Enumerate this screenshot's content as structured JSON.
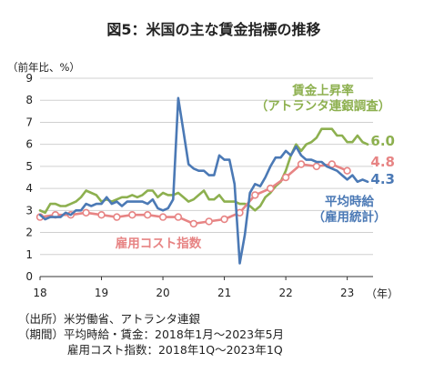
{
  "title": "図5：米国の主な賃金指標の推移",
  "notes": [
    "（出所）米労働省、アトランタ連銀",
    "（期間）平均時給・賃金：2018年1月～2023年5月",
    "　　　　 雇用コスト指数：2018年1Q～2023年1Q"
  ],
  "chart_data": {
    "type": "line",
    "title": "図5：米国の主な賃金指標の推移",
    "ylabel": "（前年比、%）",
    "xlabel": "（年）",
    "ylim": [
      0,
      9
    ],
    "yticks": [
      "0",
      "1",
      "2",
      "3",
      "4",
      "5",
      "6",
      "7",
      "8",
      "9"
    ],
    "xlim": [
      2018,
      2023.42
    ],
    "xticks": [
      {
        "x": 2018,
        "label": "18"
      },
      {
        "x": 2019,
        "label": "19"
      },
      {
        "x": 2020,
        "label": "20"
      },
      {
        "x": 2021,
        "label": "21"
      },
      {
        "x": 2022,
        "label": "22"
      },
      {
        "x": 2023,
        "label": "23"
      }
    ],
    "grid": true,
    "series": [
      {
        "name": "賃金上昇率\n（アトランタ連銀調査）",
        "color": "#8db04f",
        "end_label": "6.0",
        "frequency": "monthly",
        "start": 2018,
        "values": [
          3.0,
          2.9,
          3.3,
          3.3,
          3.2,
          3.2,
          3.3,
          3.4,
          3.6,
          3.9,
          3.8,
          3.7,
          3.4,
          3.5,
          3.4,
          3.5,
          3.6,
          3.6,
          3.7,
          3.6,
          3.7,
          3.9,
          3.9,
          3.6,
          3.8,
          3.7,
          3.7,
          3.8,
          3.6,
          3.4,
          3.5,
          3.7,
          3.9,
          3.5,
          3.5,
          3.7,
          3.4,
          3.4,
          3.4,
          3.3,
          3.3,
          3.2,
          3.0,
          3.2,
          3.6,
          3.8,
          4.1,
          4.3,
          4.8,
          5.5,
          6.0,
          5.7,
          6.0,
          6.1,
          6.3,
          6.7,
          6.7,
          6.7,
          6.4,
          6.4,
          6.1,
          6.1,
          6.4,
          6.1,
          6.0
        ]
      },
      {
        "name": "平均時給\n（雇用統計）",
        "color": "#4b79b5",
        "end_label": "4.3",
        "frequency": "monthly",
        "start": 2018,
        "values": [
          2.8,
          2.6,
          2.7,
          2.7,
          2.7,
          2.9,
          2.8,
          3.0,
          3.0,
          3.3,
          3.2,
          3.3,
          3.3,
          3.6,
          3.3,
          3.4,
          3.2,
          3.4,
          3.4,
          3.4,
          3.4,
          3.3,
          3.5,
          3.1,
          3.0,
          3.1,
          3.5,
          8.1,
          6.6,
          5.1,
          4.9,
          4.8,
          4.8,
          4.6,
          4.6,
          5.5,
          5.3,
          5.3,
          4.2,
          0.6,
          1.9,
          3.8,
          4.2,
          4.1,
          4.5,
          5.0,
          5.4,
          5.4,
          5.7,
          5.5,
          5.9,
          5.5,
          5.3,
          5.3,
          5.2,
          5.2,
          5.0,
          4.9,
          4.8,
          4.6,
          4.4,
          4.6,
          4.3,
          4.4,
          4.3
        ]
      },
      {
        "name": "雇用コスト指数",
        "color": "#e78484",
        "end_label": "4.8",
        "frequency": "quarterly",
        "start": 2018,
        "values": [
          2.7,
          2.8,
          2.8,
          2.9,
          2.8,
          2.7,
          2.8,
          2.8,
          2.7,
          2.7,
          2.4,
          2.5,
          2.6,
          2.9,
          3.7,
          4.0,
          4.5,
          5.1,
          5.0,
          5.1,
          4.8
        ]
      }
    ]
  }
}
